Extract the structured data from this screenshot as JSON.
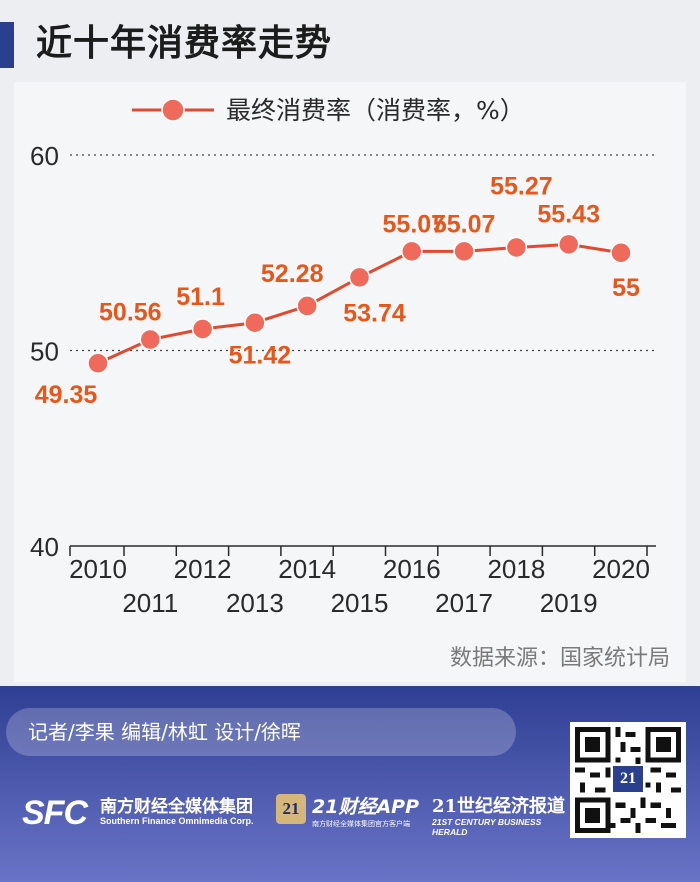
{
  "title": "近十年消费率走势",
  "source": "数据来源：国家统计局",
  "credits": "记者/李果  编辑/林虹  设计/徐晖",
  "logos": {
    "sfc_mark": "SFC",
    "sfc_name": "南方财经全媒体集团",
    "sfc_sub": "Southern Finance Omnimedia Corp.",
    "app_badge": "21",
    "app_name": "21财经APP",
    "app_sub": "南方财经全媒体集团官方客户端",
    "herald_name": "21世纪经济报道",
    "herald_sub": "21ST CENTURY BUSINESS HERALD",
    "qr_badge": "21"
  },
  "colors": {
    "title_bar": "#2b3f8f",
    "line": "#e04a2f",
    "marker": "#ef6a5a",
    "label": "#e8561a",
    "footer_top": "#2f3f93",
    "footer_bottom": "#6a74c7"
  },
  "chart_data": {
    "type": "line",
    "title": "",
    "xlabel": "",
    "ylabel": "",
    "legend": "top",
    "grid": "dotted horizontal",
    "ylim": [
      40,
      60
    ],
    "yticks": [
      40,
      50,
      60
    ],
    "categories": [
      "2010",
      "2011",
      "2012",
      "2013",
      "2014",
      "2015",
      "2016",
      "2017",
      "2018",
      "2019",
      "2020"
    ],
    "series": [
      {
        "name": "最终消费率（消费率，%）",
        "values": [
          49.35,
          50.56,
          51.1,
          51.42,
          52.28,
          53.74,
          55.07,
          55.07,
          55.27,
          55.43,
          55
        ]
      }
    ],
    "data_labels": [
      "49.35",
      "50.56",
      "51.1",
      "51.42",
      "52.28",
      "53.74",
      "55.07",
      "55.07",
      "55.27",
      "55.43",
      "55"
    ]
  }
}
